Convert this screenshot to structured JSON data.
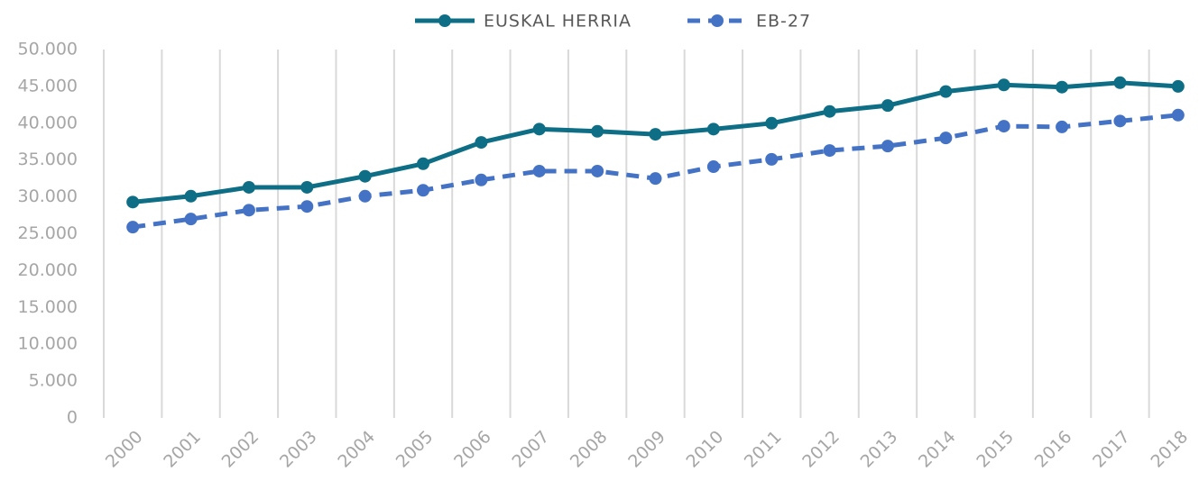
{
  "chart_data": {
    "type": "line",
    "categories": [
      "2000",
      "2001",
      "2002",
      "2003",
      "2004",
      "2005",
      "2006",
      "2007",
      "2008",
      "2009",
      "2010",
      "2011",
      "2012",
      "2013",
      "2014",
      "2015",
      "2016",
      "2017",
      "2018"
    ],
    "series": [
      {
        "name": "EUSKAL HERRIA",
        "color": "#0e6e85",
        "dashed": false,
        "values": [
          29300,
          30100,
          31300,
          31300,
          32800,
          34500,
          37400,
          39200,
          38900,
          38500,
          39200,
          40000,
          41600,
          42400,
          44300,
          45200,
          44900,
          45500,
          45000
        ]
      },
      {
        "name": "EB-27",
        "color": "#4472c4",
        "dashed": true,
        "values": [
          25900,
          27000,
          28200,
          28700,
          30100,
          30900,
          32300,
          33500,
          33500,
          32500,
          34100,
          35100,
          36300,
          36900,
          38000,
          39600,
          39500,
          40300,
          41100
        ]
      }
    ],
    "ylim": [
      0,
      50000
    ],
    "yticks": [
      0,
      {
        "value": 5000,
        "label": "5.000"
      },
      {
        "value": 10000,
        "label": "10.000"
      },
      {
        "value": 15000,
        "label": "15.000"
      },
      {
        "value": 20000,
        "label": "20.000"
      },
      {
        "value": 25000,
        "label": "25.000"
      },
      {
        "value": 30000,
        "label": "30.000"
      },
      {
        "value": 35000,
        "label": "35.000"
      },
      {
        "value": 40000,
        "label": "40.000"
      },
      {
        "value": 45000,
        "label": "45.000"
      },
      {
        "value": 50000,
        "label": "50.000"
      }
    ],
    "legend": "top"
  }
}
